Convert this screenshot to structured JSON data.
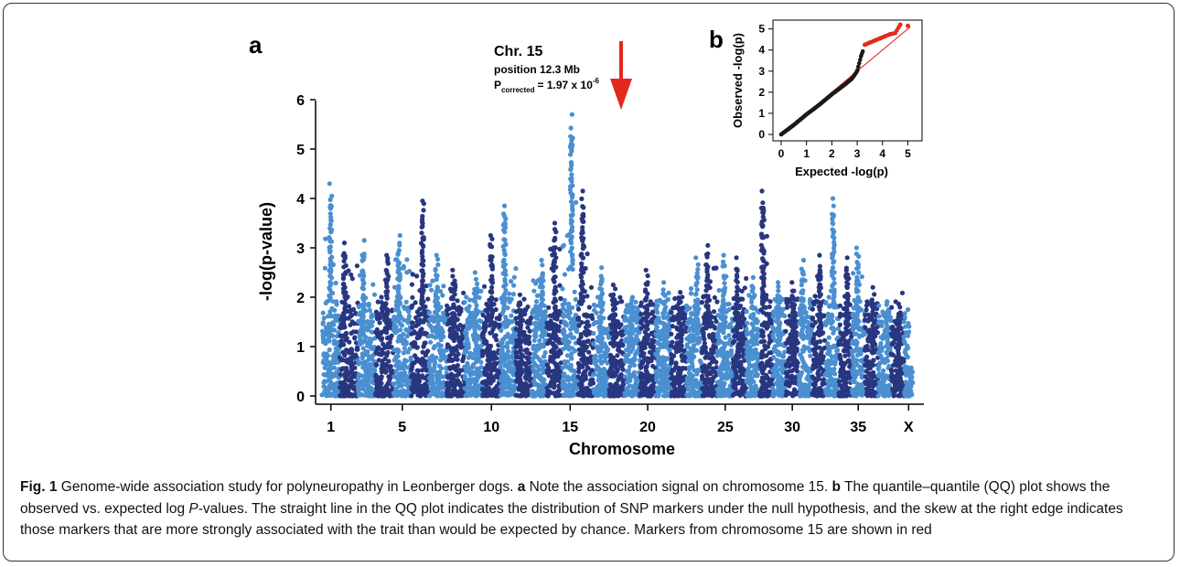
{
  "caption": {
    "fig_label": "Fig. 1",
    "title": "Genome-wide association study for polyneuropathy in Leonberger dogs.",
    "panel_a_label": "a",
    "panel_a_text": "Note the association signal on chromosome 15.",
    "panel_b_label": "b",
    "panel_b_text_before": "The quantile–quantile (QQ) plot shows the observed vs. expected log",
    "panel_b_italic": "P",
    "panel_b_text_after": "-values. The straight line in the QQ plot indicates the distribution of SNP markers under the null hypothesis, and the skew at the right edge indicates those markers that are more strongly associated with the trait than would be expected by chance. Markers from chromosome 15 are shown in red"
  },
  "chart_data": [
    {
      "panel": "a",
      "type": "scatter",
      "subtype": "manhattan",
      "panel_label": "a",
      "xlabel": "Chromosome",
      "ylabel": "-log(p-value)",
      "ylim": [
        0,
        6
      ],
      "yticks": [
        0,
        1,
        2,
        3,
        4,
        5,
        6
      ],
      "chromosomes": [
        "1",
        "2",
        "3",
        "4",
        "5",
        "6",
        "7",
        "8",
        "9",
        "10",
        "11",
        "12",
        "13",
        "14",
        "15",
        "16",
        "17",
        "18",
        "19",
        "20",
        "21",
        "22",
        "23",
        "24",
        "25",
        "26",
        "27",
        "28",
        "29",
        "30",
        "31",
        "32",
        "33",
        "34",
        "35",
        "36",
        "37",
        "38",
        "X"
      ],
      "xtick_labels": [
        "1",
        "5",
        "10",
        "15",
        "20",
        "25",
        "30",
        "35",
        "X"
      ],
      "colors": {
        "odd": "#4a8fd0",
        "even": "#283680"
      },
      "chromosome_peaks": [
        4.3,
        3.1,
        3.15,
        2.85,
        3.25,
        3.95,
        2.85,
        2.55,
        2.5,
        3.25,
        3.85,
        2.05,
        2.75,
        3.5,
        5.7,
        4.15,
        2.6,
        2.25,
        2.0,
        2.55,
        2.3,
        2.1,
        2.8,
        3.05,
        2.85,
        2.8,
        2.4,
        4.15,
        2.3,
        2.3,
        2.75,
        2.85,
        4.0,
        2.8,
        3.0,
        2.2,
        1.9,
        1.6,
        1.75
      ],
      "grid": false,
      "annotation": {
        "chromosome": "15",
        "title": "Chr. 15",
        "position_text": "position 12.3 Mb",
        "p_label": "P",
        "p_subscript": "corrected",
        "p_value_text": "= 1.97 x 10",
        "p_exponent": "-6",
        "arrow_color": "#e3281d"
      }
    },
    {
      "panel": "b",
      "type": "scatter",
      "subtype": "qq",
      "panel_label": "b",
      "xlabel": "Expected -log(p)",
      "ylabel": "Observed -log(p)",
      "xlim": [
        0,
        5.2
      ],
      "ylim": [
        0,
        5.2
      ],
      "xticks": [
        0,
        1,
        2,
        3,
        4,
        5
      ],
      "yticks": [
        0,
        1,
        2,
        3,
        4,
        5
      ],
      "reference_line": [
        [
          0,
          0
        ],
        [
          5.1,
          5.1
        ]
      ],
      "points_curve": [
        [
          0,
          0
        ],
        [
          0.5,
          0.45
        ],
        [
          1,
          0.95
        ],
        [
          1.5,
          1.4
        ],
        [
          2,
          1.9
        ],
        [
          2.5,
          2.35
        ],
        [
          2.8,
          2.65
        ],
        [
          3,
          3.0
        ],
        [
          3.15,
          3.7
        ],
        [
          3.3,
          4.2
        ]
      ],
      "red_points": [
        [
          3.3,
          4.25
        ],
        [
          3.5,
          4.35
        ],
        [
          3.7,
          4.45
        ],
        [
          3.9,
          4.55
        ],
        [
          4.1,
          4.65
        ],
        [
          4.3,
          4.75
        ],
        [
          4.5,
          4.8
        ],
        [
          4.7,
          5.2
        ],
        [
          5.0,
          5.15
        ]
      ],
      "colors": {
        "points": "#1a1a1a",
        "highlight": "#e3281d",
        "reference": "#e3281d"
      }
    }
  ]
}
